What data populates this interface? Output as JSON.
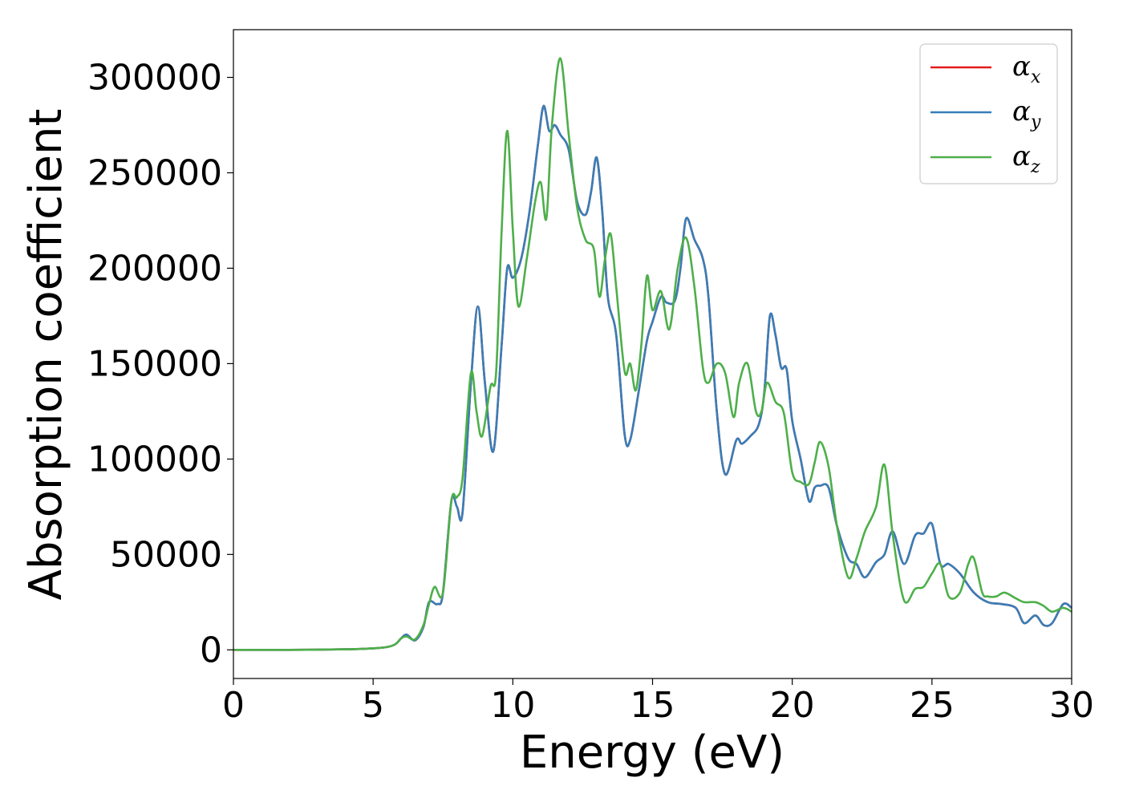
{
  "chart_data": {
    "type": "line",
    "title": "",
    "xlabel": "Energy (eV)",
    "ylabel": "Absorption coefficient",
    "xlim": [
      0,
      30
    ],
    "ylim": [
      -15000,
      325000
    ],
    "xticks": [
      0,
      5,
      10,
      15,
      20,
      25,
      30
    ],
    "xtick_labels": [
      "0",
      "5",
      "10",
      "15",
      "20",
      "25",
      "30"
    ],
    "yticks": [
      0,
      50000,
      100000,
      150000,
      200000,
      250000,
      300000
    ],
    "ytick_labels": [
      "0",
      "50000",
      "100000",
      "150000",
      "200000",
      "250000",
      "300000"
    ],
    "grid": false,
    "legend_position": "top-right",
    "series": [
      {
        "name": "αx",
        "legend_symbol": "α",
        "legend_sub": "x",
        "color": "#e41a1c",
        "x": [
          0,
          2,
          4,
          5,
          5.5,
          5.8,
          6.0,
          6.2,
          6.5,
          6.8,
          7.0,
          7.3,
          7.5,
          7.8,
          8.0,
          8.2,
          8.5,
          8.75,
          9.0,
          9.3,
          9.6,
          9.8,
          10.0,
          10.3,
          10.6,
          10.9,
          11.1,
          11.3,
          11.5,
          11.7,
          12.0,
          12.3,
          12.6,
          12.8,
          13.0,
          13.2,
          13.4,
          13.7,
          14.0,
          14.2,
          14.5,
          14.8,
          15.0,
          15.3,
          15.5,
          15.8,
          16.0,
          16.2,
          16.5,
          16.8,
          17.0,
          17.3,
          17.6,
          18.0,
          18.2,
          18.5,
          18.8,
          19.0,
          19.2,
          19.4,
          19.6,
          19.8,
          20.0,
          20.3,
          20.6,
          20.8,
          21.0,
          21.3,
          21.6,
          22.0,
          22.3,
          22.6,
          23.0,
          23.3,
          23.6,
          24.0,
          24.4,
          24.7,
          25.0,
          25.3,
          25.6,
          26.0,
          26.5,
          27.0,
          27.5,
          28.0,
          28.3,
          28.7,
          29.0,
          29.3,
          29.7,
          30.0
        ],
        "values": [
          0,
          0,
          300,
          800,
          1500,
          3000,
          6000,
          8000,
          5000,
          12000,
          25000,
          24000,
          30000,
          78000,
          75000,
          72000,
          140000,
          180000,
          140000,
          104000,
          160000,
          200000,
          195000,
          205000,
          230000,
          265000,
          285000,
          272000,
          275000,
          270000,
          262000,
          235000,
          228000,
          240000,
          258000,
          230000,
          185000,
          165000,
          113000,
          110000,
          135000,
          162000,
          172000,
          185000,
          182000,
          183000,
          200000,
          226000,
          215000,
          205000,
          185000,
          125000,
          92000,
          110000,
          108000,
          112000,
          118000,
          135000,
          175000,
          165000,
          148000,
          147000,
          120000,
          100000,
          78000,
          85000,
          86000,
          85000,
          65000,
          48000,
          45000,
          38000,
          46000,
          50000,
          62000,
          45000,
          60000,
          61000,
          66000,
          45000,
          45000,
          40000,
          30000,
          25000,
          24000,
          22000,
          14000,
          18000,
          13000,
          14000,
          24000,
          22000
        ]
      },
      {
        "name": "αy",
        "legend_symbol": "α",
        "legend_sub": "y",
        "color": "#377eb8",
        "x": [
          0,
          2,
          4,
          5,
          5.5,
          5.8,
          6.0,
          6.2,
          6.5,
          6.8,
          7.0,
          7.3,
          7.5,
          7.8,
          8.0,
          8.2,
          8.5,
          8.75,
          9.0,
          9.3,
          9.6,
          9.8,
          10.0,
          10.3,
          10.6,
          10.9,
          11.1,
          11.3,
          11.5,
          11.7,
          12.0,
          12.3,
          12.6,
          12.8,
          13.0,
          13.2,
          13.4,
          13.7,
          14.0,
          14.2,
          14.5,
          14.8,
          15.0,
          15.3,
          15.5,
          15.8,
          16.0,
          16.2,
          16.5,
          16.8,
          17.0,
          17.3,
          17.6,
          18.0,
          18.2,
          18.5,
          18.8,
          19.0,
          19.2,
          19.4,
          19.6,
          19.8,
          20.0,
          20.3,
          20.6,
          20.8,
          21.0,
          21.3,
          21.6,
          22.0,
          22.3,
          22.6,
          23.0,
          23.3,
          23.6,
          24.0,
          24.4,
          24.7,
          25.0,
          25.3,
          25.6,
          26.0,
          26.5,
          27.0,
          27.5,
          28.0,
          28.3,
          28.7,
          29.0,
          29.3,
          29.7,
          30.0
        ],
        "values": [
          0,
          0,
          300,
          800,
          1500,
          3000,
          6000,
          8000,
          5000,
          12000,
          25000,
          24000,
          30000,
          78000,
          75000,
          72000,
          140000,
          180000,
          140000,
          104000,
          160000,
          200000,
          195000,
          205000,
          230000,
          265000,
          285000,
          272000,
          275000,
          270000,
          262000,
          235000,
          228000,
          240000,
          258000,
          230000,
          185000,
          165000,
          113000,
          110000,
          135000,
          162000,
          172000,
          185000,
          182000,
          183000,
          200000,
          226000,
          215000,
          205000,
          185000,
          125000,
          92000,
          110000,
          108000,
          112000,
          118000,
          135000,
          175000,
          165000,
          148000,
          147000,
          120000,
          100000,
          78000,
          85000,
          86000,
          85000,
          65000,
          48000,
          45000,
          38000,
          46000,
          50000,
          62000,
          45000,
          60000,
          61000,
          66000,
          45000,
          45000,
          40000,
          30000,
          25000,
          24000,
          22000,
          14000,
          18000,
          13000,
          14000,
          24000,
          22000
        ]
      },
      {
        "name": "αz",
        "legend_symbol": "α",
        "legend_sub": "z",
        "color": "#4daf4a",
        "x": [
          0,
          2,
          4,
          5,
          5.5,
          5.8,
          6.0,
          6.2,
          6.5,
          6.8,
          7.0,
          7.2,
          7.5,
          7.8,
          8.0,
          8.2,
          8.5,
          8.7,
          8.9,
          9.2,
          9.4,
          9.6,
          9.8,
          10.0,
          10.2,
          10.5,
          10.8,
          11.0,
          11.2,
          11.4,
          11.7,
          12.0,
          12.3,
          12.6,
          12.9,
          13.1,
          13.3,
          13.5,
          13.7,
          14.0,
          14.2,
          14.4,
          14.6,
          14.8,
          15.0,
          15.3,
          15.6,
          15.9,
          16.2,
          16.5,
          16.8,
          17.0,
          17.3,
          17.6,
          17.9,
          18.1,
          18.4,
          18.7,
          18.9,
          19.1,
          19.4,
          19.7,
          20.0,
          20.3,
          20.6,
          20.8,
          21.0,
          21.3,
          21.6,
          22.0,
          22.3,
          22.6,
          23.0,
          23.3,
          23.6,
          24.0,
          24.4,
          24.7,
          25.0,
          25.3,
          25.6,
          26.0,
          26.3,
          26.5,
          26.8,
          27.0,
          27.3,
          27.6,
          28.0,
          28.3,
          28.7,
          29.0,
          29.3,
          29.7,
          30.0
        ],
        "values": [
          0,
          0,
          300,
          800,
          1500,
          3000,
          6000,
          7000,
          5500,
          13000,
          24000,
          33000,
          30000,
          78000,
          80000,
          90000,
          145000,
          125000,
          112000,
          138000,
          145000,
          220000,
          272000,
          220000,
          180000,
          205000,
          235000,
          245000,
          226000,
          275000,
          310000,
          270000,
          232000,
          215000,
          210000,
          185000,
          205000,
          218000,
          190000,
          146000,
          150000,
          136000,
          160000,
          196000,
          178000,
          188000,
          168000,
          200000,
          216000,
          190000,
          148000,
          140000,
          150000,
          145000,
          122000,
          140000,
          150000,
          125000,
          125000,
          140000,
          130000,
          124000,
          93000,
          88000,
          87000,
          98000,
          109000,
          96000,
          65000,
          38000,
          48000,
          62000,
          75000,
          97000,
          60000,
          26000,
          32000,
          33000,
          40000,
          45000,
          28000,
          30000,
          45000,
          48000,
          30000,
          28000,
          28000,
          30000,
          27000,
          25000,
          25000,
          23000,
          20000,
          22000,
          20000
        ]
      }
    ]
  }
}
